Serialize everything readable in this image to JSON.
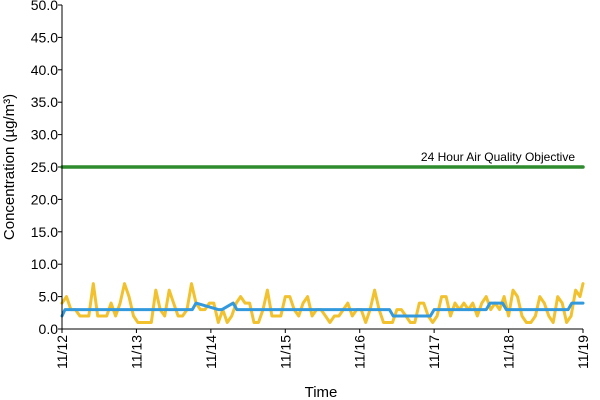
{
  "chart_data": {
    "type": "line",
    "title": "",
    "xlabel": "Time",
    "ylabel": "Concentration (µg/m³)",
    "ylim": [
      0,
      50
    ],
    "yticks": [
      "0.0",
      "5.0",
      "10.0",
      "15.0",
      "20.0",
      "25.0",
      "30.0",
      "35.0",
      "40.0",
      "45.0",
      "50.0"
    ],
    "xticks": [
      "11/12",
      "11/13",
      "11/14",
      "11/15",
      "11/16",
      "11/17",
      "11/18",
      "11/19"
    ],
    "grid": false,
    "legend": false,
    "annotations": [
      {
        "text": "24 Hour Air Quality Objective",
        "y": 25
      }
    ],
    "series": [
      {
        "color": "#2e8b2e",
        "style": "reference-line",
        "x_days": [
          0,
          7
        ],
        "values": [
          25,
          25
        ]
      },
      {
        "color": "#f2c12e",
        "x_days": [
          0,
          0.06,
          0.12,
          0.18,
          0.24,
          0.3,
          0.36,
          0.42,
          0.48,
          0.54,
          0.6,
          0.66,
          0.72,
          0.78,
          0.84,
          0.9,
          0.96,
          1.02,
          1.08,
          1.14,
          1.2,
          1.26,
          1.32,
          1.38,
          1.44,
          1.5,
          1.56,
          1.62,
          1.68,
          1.74,
          1.8,
          1.86,
          1.92,
          1.98,
          2.04,
          2.1,
          2.16,
          2.22,
          2.28,
          2.34,
          2.4,
          2.46,
          2.52,
          2.58,
          2.64,
          2.7,
          2.76,
          2.82,
          2.88,
          2.94,
          3.0,
          3.06,
          3.12,
          3.18,
          3.24,
          3.3,
          3.36,
          3.42,
          3.48,
          3.54,
          3.6,
          3.66,
          3.72,
          3.78,
          3.84,
          3.9,
          3.96,
          4.02,
          4.08,
          4.14,
          4.2,
          4.26,
          4.32,
          4.38,
          4.44,
          4.5,
          4.56,
          4.62,
          4.68,
          4.74,
          4.8,
          4.86,
          4.92,
          4.98,
          5.04,
          5.1,
          5.16,
          5.22,
          5.28,
          5.34,
          5.4,
          5.46,
          5.52,
          5.58,
          5.64,
          5.7,
          5.76,
          5.82,
          5.88,
          5.94,
          6.0,
          6.06,
          6.12,
          6.18,
          6.24,
          6.3,
          6.36,
          6.42,
          6.48,
          6.54,
          6.6,
          6.66,
          6.72,
          6.78,
          6.84,
          6.9,
          6.96,
          7.0
        ],
        "values": [
          4,
          5,
          3,
          3,
          2,
          2,
          2,
          7,
          2,
          2,
          2,
          4,
          2,
          4,
          7,
          5,
          2,
          1,
          1,
          1,
          1,
          6,
          3,
          2,
          6,
          4,
          2,
          2,
          3,
          7,
          4,
          3,
          3,
          4,
          4,
          1,
          3,
          1,
          2,
          4,
          5,
          4,
          4,
          1,
          1,
          3,
          6,
          2,
          2,
          2,
          5,
          5,
          3,
          2,
          4,
          5,
          2,
          3,
          3,
          2,
          1,
          2,
          2,
          3,
          4,
          2,
          3,
          3,
          1,
          3,
          6,
          3,
          1,
          1,
          1,
          3,
          3,
          2,
          1,
          1,
          4,
          4,
          2,
          1,
          2,
          5,
          5,
          2,
          4,
          3,
          4,
          3,
          4,
          2,
          4,
          5,
          3,
          4,
          3,
          5,
          2,
          6,
          5,
          2,
          1,
          1,
          2,
          5,
          4,
          2,
          1,
          5,
          4,
          1,
          2,
          6,
          5,
          7
        ]
      },
      {
        "color": "#3399dd",
        "x_days": [
          0,
          0.04,
          1.45,
          1.5,
          1.75,
          1.8,
          2.1,
          2.15,
          2.3,
          2.35,
          4.4,
          4.45,
          4.7,
          4.75,
          4.95,
          5.0,
          5.3,
          5.35,
          5.7,
          5.75,
          5.92,
          5.97,
          6.6,
          6.65,
          6.8,
          6.85,
          7.0
        ],
        "values": [
          2,
          3,
          3,
          3,
          3,
          4,
          3,
          3,
          4,
          3,
          3,
          2,
          2,
          2,
          2,
          3,
          3,
          3,
          3,
          4,
          4,
          3,
          3,
          3,
          3,
          4,
          4
        ]
      }
    ]
  }
}
